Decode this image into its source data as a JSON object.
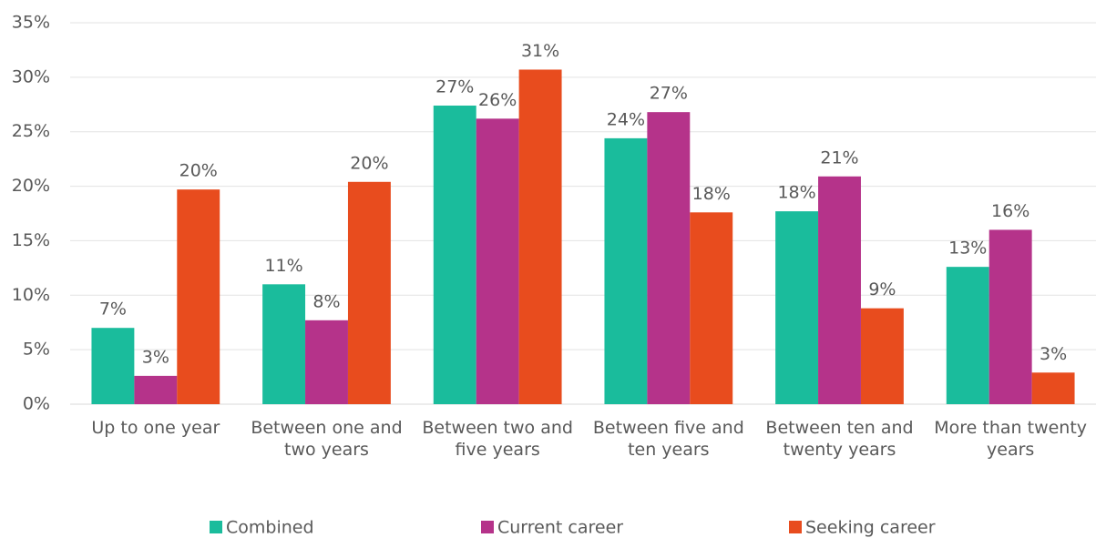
{
  "chart_data": {
    "type": "bar",
    "categories": [
      "Up to one year",
      "Between one and two years",
      "Between two and five years",
      "Between five and ten years",
      "Between ten and twenty years",
      "More than twenty years"
    ],
    "series": [
      {
        "name": "Combined",
        "color": "#1abc9c",
        "values": [
          7.0,
          11.0,
          27.4,
          24.4,
          17.7,
          12.6
        ],
        "value_labels": [
          "7%",
          "11%",
          "27%",
          "24%",
          "18%",
          "13%"
        ]
      },
      {
        "name": "Current career",
        "color": "#b5338a",
        "values": [
          2.6,
          7.7,
          26.2,
          26.8,
          20.9,
          16.0
        ],
        "value_labels": [
          "3%",
          "8%",
          "26%",
          "27%",
          "21%",
          "16%"
        ]
      },
      {
        "name": "Seeking career",
        "color": "#e84c1e",
        "values": [
          19.7,
          20.4,
          30.7,
          17.6,
          8.8,
          2.9
        ],
        "value_labels": [
          "20%",
          "20%",
          "31%",
          "18%",
          "9%",
          "3%"
        ]
      }
    ],
    "ylim": [
      0,
      35
    ],
    "yticks": [
      {
        "value": 0,
        "label": "0%"
      },
      {
        "value": 5,
        "label": "5%"
      },
      {
        "value": 10,
        "label": "10%"
      },
      {
        "value": 15,
        "label": "15%"
      },
      {
        "value": 20,
        "label": "20%"
      },
      {
        "value": 25,
        "label": "25%"
      },
      {
        "value": 30,
        "label": "30%"
      },
      {
        "value": 35,
        "label": "35%"
      }
    ],
    "grid": true,
    "legend": "bottom"
  }
}
